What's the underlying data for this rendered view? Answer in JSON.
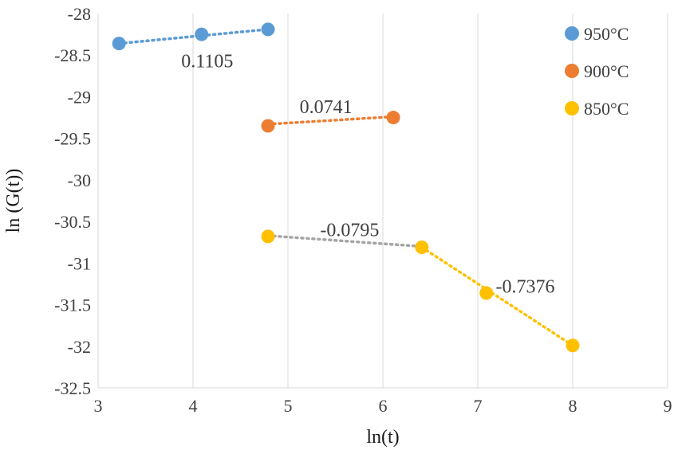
{
  "chart_data": {
    "type": "scatter",
    "xlabel": "ln(t)",
    "ylabel": "ln (G(t))",
    "xlim": [
      3,
      9
    ],
    "ylim": [
      -32.5,
      -28
    ],
    "x_ticks": [
      3,
      4,
      5,
      6,
      7,
      8,
      9
    ],
    "y_ticks": [
      -28,
      -28.5,
      -29,
      -29.5,
      -30,
      -30.5,
      -31,
      -31.5,
      -32,
      -32.5
    ],
    "grid": "vertical",
    "legend_position": "top-right",
    "series": [
      {
        "name": "950°C",
        "color": "#5b9bd5",
        "points": [
          [
            3.22,
            -28.36
          ],
          [
            4.09,
            -28.25
          ],
          [
            4.79,
            -28.19
          ]
        ]
      },
      {
        "name": "900°C",
        "color": "#ed7d31",
        "points": [
          [
            4.79,
            -29.35
          ],
          [
            6.11,
            -29.25
          ]
        ]
      },
      {
        "name": "850°C",
        "color": "#ffc000",
        "points": [
          [
            4.79,
            -30.68
          ],
          [
            6.41,
            -30.81
          ],
          [
            7.09,
            -31.36
          ],
          [
            8.0,
            -31.99
          ]
        ]
      }
    ],
    "trendlines": [
      {
        "label": "0.1105",
        "color": "#5b9bd5",
        "from": [
          3.22,
          -28.36
        ],
        "to": [
          4.79,
          -28.19
        ],
        "label_at": [
          4.15,
          -28.57
        ]
      },
      {
        "label": "0.0741",
        "color": "#ed7d31",
        "from": [
          4.79,
          -29.33
        ],
        "to": [
          6.11,
          -29.24
        ],
        "label_at": [
          5.4,
          -29.12
        ]
      },
      {
        "label": "-0.0795",
        "color": "#a5a5a5",
        "from": [
          4.79,
          -30.67
        ],
        "to": [
          6.41,
          -30.8
        ],
        "label_at": [
          5.65,
          -30.6
        ]
      },
      {
        "label": "-0.7376",
        "color": "#ffc000",
        "from": [
          6.41,
          -30.81
        ],
        "to": [
          8.0,
          -31.99
        ],
        "label_at": [
          7.5,
          -31.28
        ]
      }
    ]
  }
}
